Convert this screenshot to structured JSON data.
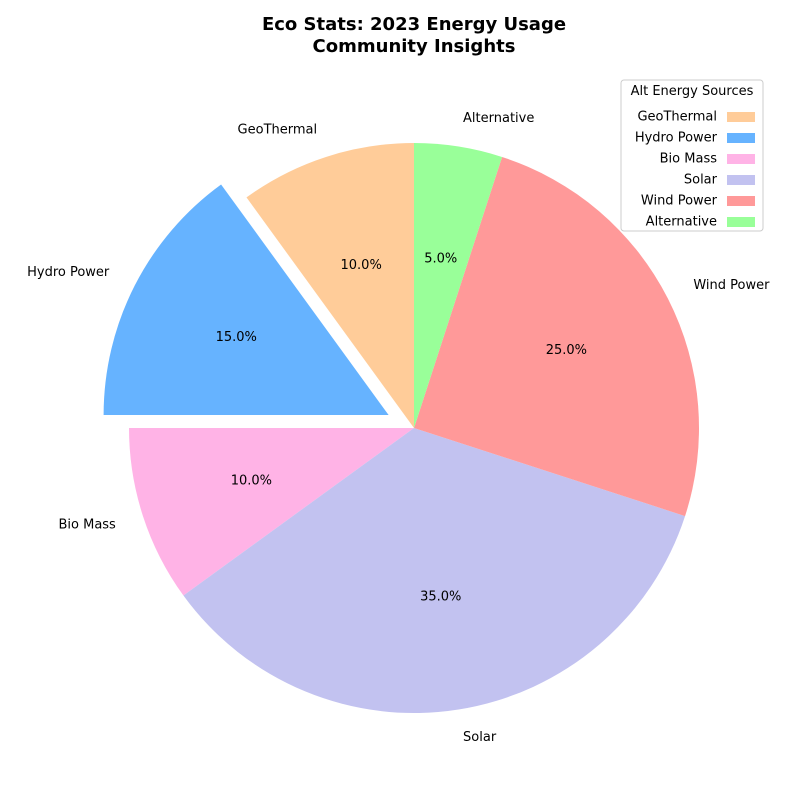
{
  "chart_data": {
    "type": "pie",
    "title": "Eco Stats: 2023 Energy Usage\nCommunity Insights",
    "legend": {
      "title": "Alt Energy Sources",
      "position": "top-right"
    },
    "start_angle_deg": 90,
    "direction": "counterclockwise",
    "slices": [
      {
        "label": "GeoThermal",
        "value": 10.0,
        "pct_label": "10.0%",
        "color": "#ffcc99",
        "exploded": false
      },
      {
        "label": "Hydro Power",
        "value": 15.0,
        "pct_label": "15.0%",
        "color": "#66b3ff",
        "exploded": true
      },
      {
        "label": "Bio Mass",
        "value": 10.0,
        "pct_label": "10.0%",
        "color": "#ffb3e6",
        "exploded": false
      },
      {
        "label": "Solar",
        "value": 35.0,
        "pct_label": "35.0%",
        "color": "#c2c2f0",
        "exploded": false
      },
      {
        "label": "Wind Power",
        "value": 25.0,
        "pct_label": "25.0%",
        "color": "#ff9999",
        "exploded": false
      },
      {
        "label": "Alternative",
        "value": 5.0,
        "pct_label": "5.0%",
        "color": "#99ff99",
        "exploded": false
      }
    ]
  }
}
